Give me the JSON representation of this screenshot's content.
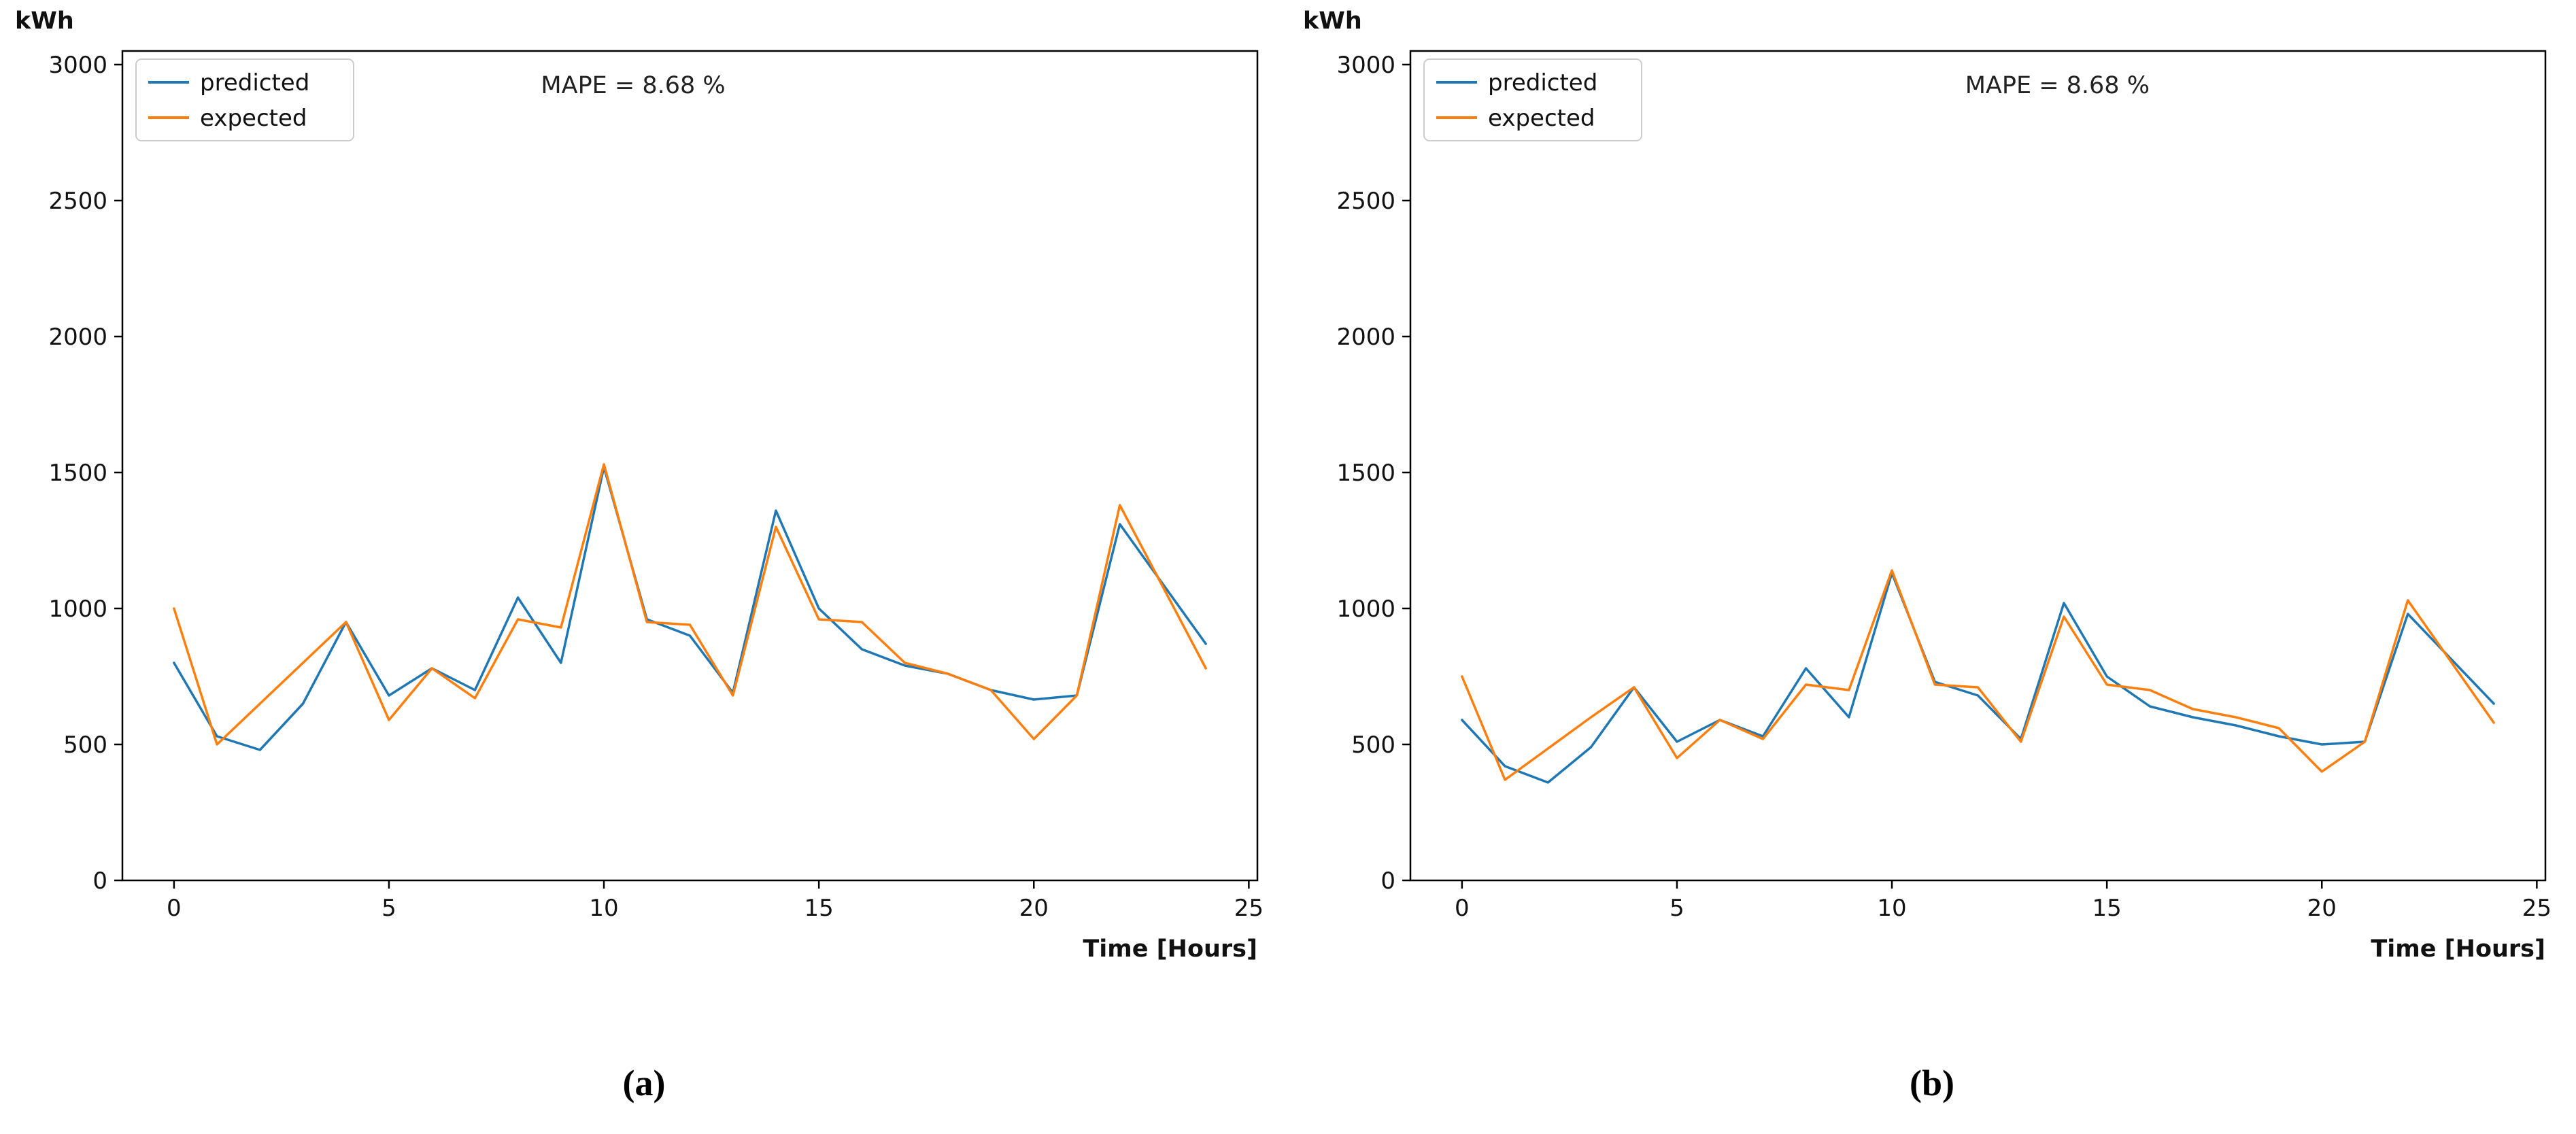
{
  "page": {
    "background": "#ffffff"
  },
  "chart_data": [
    {
      "id": "a",
      "type": "line",
      "caption": "(a)",
      "ylabel": "kWh",
      "xlabel": "Time [Hours]",
      "annotation": "MAPE = 8.68 %",
      "annotation_x": 0.45,
      "legend_position": "upper left",
      "xticks": [
        0,
        5,
        10,
        15,
        20,
        25
      ],
      "yticks": [
        0,
        500,
        1000,
        1500,
        2000,
        2500,
        3000
      ],
      "xlim": [
        -1.2,
        25.2
      ],
      "ylim": [
        0,
        3050
      ],
      "x": [
        0,
        1,
        2,
        3,
        4,
        5,
        6,
        7,
        8,
        9,
        10,
        11,
        12,
        13,
        14,
        15,
        16,
        17,
        18,
        19,
        20,
        21,
        22,
        23,
        24
      ],
      "series": [
        {
          "name": "predicted",
          "color": "#1f77b4",
          "values": [
            800,
            530,
            480,
            650,
            950,
            680,
            780,
            700,
            1040,
            800,
            1520,
            960,
            900,
            690,
            1360,
            1000,
            850,
            790,
            760,
            700,
            665,
            680,
            1310,
            1090,
            870
          ]
        },
        {
          "name": "expected",
          "color": "#ff7f0e",
          "values": [
            1000,
            500,
            650,
            800,
            950,
            590,
            780,
            670,
            960,
            930,
            1530,
            950,
            940,
            680,
            1300,
            960,
            950,
            800,
            760,
            700,
            520,
            680,
            1380,
            1080,
            780
          ]
        }
      ]
    },
    {
      "id": "b",
      "type": "line",
      "caption": "(b)",
      "ylabel": "kWh",
      "xlabel": "Time [Hours]",
      "annotation": "MAPE = 8.68 %",
      "annotation_x": 0.57,
      "legend_position": "upper left",
      "xticks": [
        0,
        5,
        10,
        15,
        20,
        25
      ],
      "yticks": [
        0,
        500,
        1000,
        1500,
        2000,
        2500,
        3000
      ],
      "xlim": [
        -1.2,
        25.2
      ],
      "ylim": [
        0,
        3050
      ],
      "x": [
        0,
        1,
        2,
        3,
        4,
        5,
        6,
        7,
        8,
        9,
        10,
        11,
        12,
        13,
        14,
        15,
        16,
        17,
        18,
        19,
        20,
        21,
        22,
        23,
        24
      ],
      "series": [
        {
          "name": "predicted",
          "color": "#1f77b4",
          "values": [
            590,
            420,
            360,
            490,
            710,
            510,
            590,
            530,
            780,
            600,
            1130,
            730,
            680,
            520,
            1020,
            750,
            640,
            600,
            570,
            530,
            500,
            510,
            980,
            815,
            650
          ]
        },
        {
          "name": "expected",
          "color": "#ff7f0e",
          "values": [
            750,
            370,
            485,
            600,
            710,
            450,
            590,
            520,
            720,
            700,
            1140,
            720,
            710,
            510,
            970,
            720,
            700,
            630,
            600,
            560,
            400,
            510,
            1030,
            805,
            580
          ]
        }
      ]
    }
  ]
}
